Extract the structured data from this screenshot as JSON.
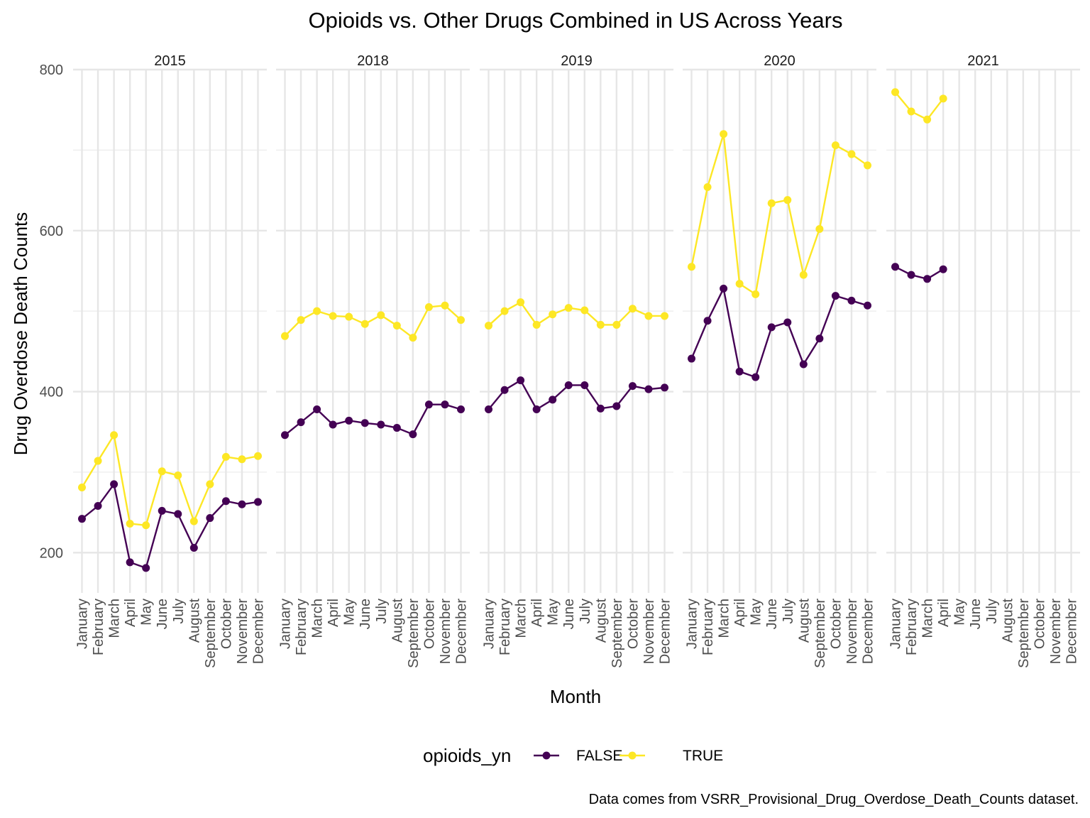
{
  "chart_data": {
    "type": "line",
    "title": "Opioids vs. Other Drugs Combined in US Across Years",
    "xlabel": "Month",
    "ylabel": "Drug Overdose Death Counts",
    "caption": "Data comes from VSRR_Provisional_Drug_Overdose_Death_Counts dataset.",
    "ylim": [
      150,
      800
    ],
    "y_ticks": [
      "200",
      "400",
      "600",
      "800"
    ],
    "y_tick_values": [
      200,
      400,
      600,
      800
    ],
    "grid": true,
    "legend": {
      "title": "opioids_yn",
      "position": "bottom"
    },
    "categories": [
      "January",
      "February",
      "March",
      "April",
      "May",
      "June",
      "July",
      "August",
      "September",
      "October",
      "November",
      "December"
    ],
    "facets": [
      {
        "label": "2015",
        "series": [
          {
            "name": "FALSE",
            "color": "#440154",
            "values": [
              242,
              258,
              285,
              188,
              181,
              252,
              248,
              206,
              243,
              264,
              260,
              263
            ]
          },
          {
            "name": "TRUE",
            "color": "#FDE725",
            "values": [
              281,
              314,
              346,
              236,
              234,
              301,
              296,
              239,
              285,
              319,
              316,
              320
            ]
          }
        ]
      },
      {
        "label": "2018",
        "series": [
          {
            "name": "FALSE",
            "color": "#440154",
            "values": [
              346,
              362,
              378,
              359,
              364,
              361,
              359,
              355,
              347,
              384,
              384,
              378
            ]
          },
          {
            "name": "TRUE",
            "color": "#FDE725",
            "values": [
              469,
              489,
              500,
              494,
              493,
              484,
              495,
              482,
              467,
              505,
              507,
              489
            ]
          }
        ]
      },
      {
        "label": "2019",
        "series": [
          {
            "name": "FALSE",
            "color": "#440154",
            "values": [
              378,
              402,
              414,
              378,
              390,
              408,
              408,
              379,
              382,
              407,
              403,
              405
            ]
          },
          {
            "name": "TRUE",
            "color": "#FDE725",
            "values": [
              482,
              500,
              511,
              483,
              496,
              504,
              501,
              483,
              483,
              503,
              494,
              494
            ]
          }
        ]
      },
      {
        "label": "2020",
        "series": [
          {
            "name": "FALSE",
            "color": "#440154",
            "values": [
              441,
              488,
              528,
              425,
              418,
              480,
              486,
              434,
              466,
              519,
              513,
              507
            ]
          },
          {
            "name": "TRUE",
            "color": "#FDE725",
            "values": [
              555,
              654,
              720,
              534,
              521,
              634,
              638,
              545,
              602,
              706,
              695,
              681
            ]
          }
        ]
      },
      {
        "label": "2021",
        "series": [
          {
            "name": "FALSE",
            "color": "#440154",
            "values": [
              555,
              545,
              540,
              552,
              null,
              null,
              null,
              null,
              null,
              null,
              null,
              null
            ]
          },
          {
            "name": "TRUE",
            "color": "#FDE725",
            "values": [
              772,
              748,
              738,
              764,
              null,
              null,
              null,
              null,
              null,
              null,
              null,
              null
            ]
          }
        ]
      }
    ]
  }
}
